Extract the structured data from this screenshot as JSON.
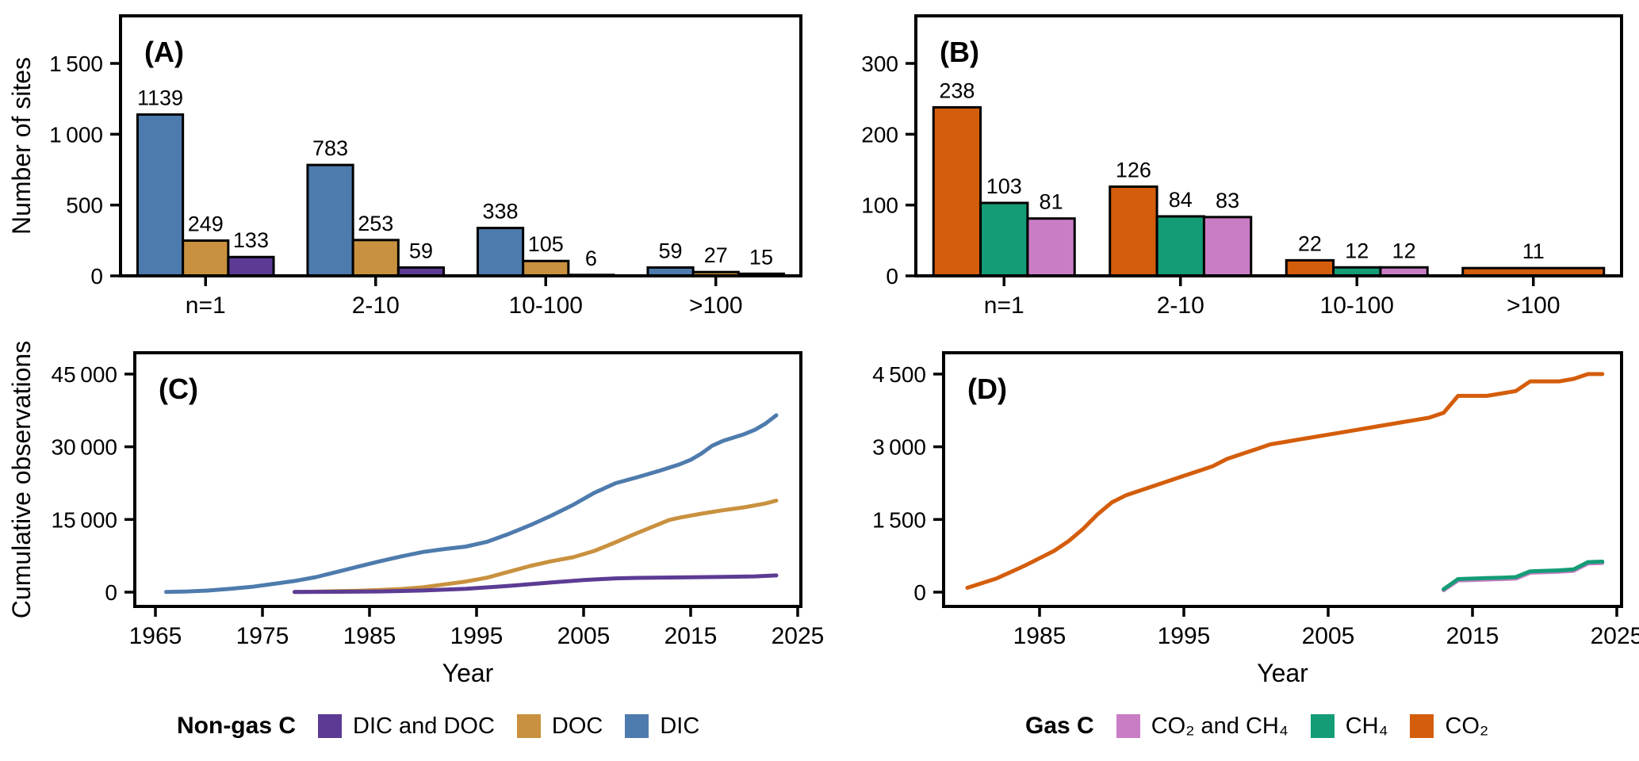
{
  "figure": {
    "background": "#ffffff",
    "colors": {
      "DIC": "#4e7bad",
      "DOC": "#c9913f",
      "DIC and DOC": "#5c3b94",
      "CO2": "#d45d0b",
      "CH4": "#149c77",
      "CO2 and CH4": "#c97dc5",
      "axis": "#000000"
    }
  },
  "chart_data": [
    {
      "type": "bar",
      "panel_label": "(A)",
      "categories": [
        "n=1",
        "2-10",
        "10-100",
        ">100"
      ],
      "series": [
        {
          "name": "DIC",
          "color": "#4e7bad",
          "values": [
            1139,
            783,
            338,
            59
          ]
        },
        {
          "name": "DOC",
          "color": "#c9913f",
          "values": [
            249,
            253,
            105,
            27
          ]
        },
        {
          "name": "DIC and DOC",
          "color": "#5c3b94",
          "values": [
            133,
            59,
            6,
            15
          ]
        }
      ],
      "bar_labels": [
        [
          "1139",
          "783",
          "338",
          "59"
        ],
        [
          "249",
          "253",
          "105",
          "27"
        ],
        [
          "133",
          "59",
          "6",
          "15"
        ]
      ],
      "xlabel": "",
      "ylabel": "Number of sites",
      "yticks": [
        0,
        500,
        1000,
        1500
      ],
      "ylim": [
        0,
        1836
      ],
      "grid": false
    },
    {
      "type": "bar",
      "panel_label": "(B)",
      "categories": [
        "n=1",
        "2-10",
        "10-100",
        ">100"
      ],
      "series": [
        {
          "name": "CO2",
          "color": "#d45d0b",
          "values": [
            238,
            126,
            22,
            11
          ]
        },
        {
          "name": "CH4",
          "color": "#149c77",
          "values": [
            103,
            84,
            12,
            null
          ]
        },
        {
          "name": "CO2 and CH4",
          "color": "#c97dc5",
          "values": [
            81,
            83,
            12,
            null
          ]
        }
      ],
      "bar_labels": [
        [
          "238",
          "126",
          "22",
          "11"
        ],
        [
          "103",
          "84",
          "12",
          ""
        ],
        [
          "81",
          "83",
          "12",
          ""
        ]
      ],
      "xlabel": "",
      "ylabel": "",
      "yticks": [
        0,
        100,
        200,
        300
      ],
      "ylim": [
        0,
        368
      ],
      "grid": false
    },
    {
      "type": "line",
      "panel_label": "(C)",
      "xlabel": "Year",
      "ylabel": "Cumulative observations",
      "xticks": [
        1965,
        1975,
        1985,
        1995,
        2005,
        2015,
        2025
      ],
      "yticks": [
        0,
        15000,
        30000,
        45000
      ],
      "xlim": [
        1963,
        2025.4
      ],
      "ylim": [
        0,
        49400
      ],
      "grid": false,
      "series": [
        {
          "name": "DIC",
          "color": "#4e7bad",
          "points": [
            [
              1966,
              50
            ],
            [
              1968,
              150
            ],
            [
              1970,
              350
            ],
            [
              1972,
              700
            ],
            [
              1974,
              1100
            ],
            [
              1976,
              1700
            ],
            [
              1978,
              2300
            ],
            [
              1980,
              3100
            ],
            [
              1982,
              4200
            ],
            [
              1984,
              5300
            ],
            [
              1986,
              6400
            ],
            [
              1988,
              7400
            ],
            [
              1990,
              8300
            ],
            [
              1992,
              8900
            ],
            [
              1994,
              9400
            ],
            [
              1996,
              10400
            ],
            [
              1998,
              12000
            ],
            [
              2000,
              13800
            ],
            [
              2002,
              15800
            ],
            [
              2004,
              18000
            ],
            [
              2006,
              20500
            ],
            [
              2008,
              22500
            ],
            [
              2010,
              23700
            ],
            [
              2012,
              25000
            ],
            [
              2014,
              26400
            ],
            [
              2015,
              27300
            ],
            [
              2016,
              28600
            ],
            [
              2017,
              30200
            ],
            [
              2018,
              31200
            ],
            [
              2019,
              31900
            ],
            [
              2020,
              32600
            ],
            [
              2021,
              33500
            ],
            [
              2022,
              34800
            ],
            [
              2023,
              36500
            ]
          ]
        },
        {
          "name": "DOC",
          "color": "#c9913f",
          "points": [
            [
              1978,
              50
            ],
            [
              1980,
              100
            ],
            [
              1982,
              200
            ],
            [
              1984,
              300
            ],
            [
              1986,
              450
            ],
            [
              1988,
              650
            ],
            [
              1990,
              1000
            ],
            [
              1992,
              1600
            ],
            [
              1994,
              2200
            ],
            [
              1996,
              3000
            ],
            [
              1998,
              4200
            ],
            [
              2000,
              5400
            ],
            [
              2002,
              6400
            ],
            [
              2004,
              7200
            ],
            [
              2006,
              8500
            ],
            [
              2008,
              10300
            ],
            [
              2010,
              12200
            ],
            [
              2012,
              14000
            ],
            [
              2013,
              14900
            ],
            [
              2014,
              15400
            ],
            [
              2016,
              16200
            ],
            [
              2018,
              16900
            ],
            [
              2020,
              17500
            ],
            [
              2022,
              18300
            ],
            [
              2023,
              18900
            ]
          ]
        },
        {
          "name": "DIC and DOC",
          "color": "#5c3b94",
          "points": [
            [
              1978,
              30
            ],
            [
              1982,
              80
            ],
            [
              1986,
              150
            ],
            [
              1990,
              350
            ],
            [
              1994,
              700
            ],
            [
              1998,
              1300
            ],
            [
              2002,
              2000
            ],
            [
              2005,
              2500
            ],
            [
              2008,
              2850
            ],
            [
              2010,
              2950
            ],
            [
              2014,
              3050
            ],
            [
              2018,
              3150
            ],
            [
              2021,
              3250
            ],
            [
              2023,
              3450
            ]
          ]
        }
      ]
    },
    {
      "type": "line",
      "panel_label": "(D)",
      "xlabel": "Year",
      "ylabel": "",
      "xticks": [
        1985,
        1995,
        2005,
        2015,
        2025
      ],
      "yticks": [
        0,
        1500,
        3000,
        4500
      ],
      "xlim": [
        1978.35,
        2025.33
      ],
      "ylim": [
        0,
        4940
      ],
      "grid": false,
      "series": [
        {
          "name": "CO2",
          "color": "#d45d0b",
          "points": [
            [
              1980,
              90
            ],
            [
              1982,
              280
            ],
            [
              1984,
              550
            ],
            [
              1985,
              700
            ],
            [
              1986,
              850
            ],
            [
              1987,
              1050
            ],
            [
              1988,
              1300
            ],
            [
              1989,
              1600
            ],
            [
              1990,
              1850
            ],
            [
              1991,
              2000
            ],
            [
              1992,
              2100
            ],
            [
              1993,
              2200
            ],
            [
              1994,
              2300
            ],
            [
              1995,
              2400
            ],
            [
              1996,
              2500
            ],
            [
              1997,
              2600
            ],
            [
              1998,
              2750
            ],
            [
              1999,
              2850
            ],
            [
              2000,
              2950
            ],
            [
              2001,
              3050
            ],
            [
              2002,
              3100
            ],
            [
              2003,
              3150
            ],
            [
              2004,
              3200
            ],
            [
              2005,
              3250
            ],
            [
              2006,
              3300
            ],
            [
              2008,
              3400
            ],
            [
              2010,
              3500
            ],
            [
              2012,
              3600
            ],
            [
              2013,
              3700
            ],
            [
              2014,
              4050
            ],
            [
              2016,
              4050
            ],
            [
              2017,
              4100
            ],
            [
              2018,
              4150
            ],
            [
              2019,
              4350
            ],
            [
              2021,
              4350
            ],
            [
              2022,
              4400
            ],
            [
              2023,
              4500
            ],
            [
              2024,
              4500
            ]
          ]
        },
        {
          "name": "CO2 and CH4",
          "color": "#c97dc5",
          "points": [
            [
              2013,
              40
            ],
            [
              2014,
              240
            ],
            [
              2015,
              250
            ],
            [
              2016,
              260
            ],
            [
              2017,
              270
            ],
            [
              2018,
              280
            ],
            [
              2019,
              400
            ],
            [
              2020,
              410
            ],
            [
              2021,
              420
            ],
            [
              2022,
              440
            ],
            [
              2023,
              590
            ],
            [
              2024,
              600
            ]
          ]
        },
        {
          "name": "CH4",
          "color": "#149c77",
          "points": [
            [
              2013,
              60
            ],
            [
              2014,
              270
            ],
            [
              2015,
              280
            ],
            [
              2016,
              290
            ],
            [
              2017,
              300
            ],
            [
              2018,
              310
            ],
            [
              2019,
              430
            ],
            [
              2020,
              440
            ],
            [
              2021,
              450
            ],
            [
              2022,
              470
            ],
            [
              2023,
              620
            ],
            [
              2024,
              630
            ]
          ]
        }
      ]
    }
  ],
  "legends": [
    {
      "title": "Non-gas C",
      "items": [
        {
          "label": "DIC and DOC",
          "color": "#5c3b94"
        },
        {
          "label": "DOC",
          "color": "#c9913f"
        },
        {
          "label": "DIC",
          "color": "#4e7bad"
        }
      ]
    },
    {
      "title": "Gas C",
      "items": [
        {
          "label": "CO₂ and CH₄",
          "color": "#c97dc5"
        },
        {
          "label": "CH₄",
          "color": "#149c77"
        },
        {
          "label": "CO₂",
          "color": "#d45d0b"
        }
      ]
    }
  ]
}
